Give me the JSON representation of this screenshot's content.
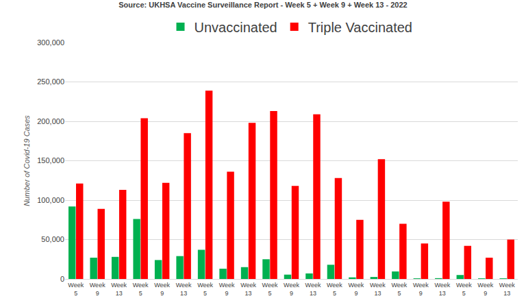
{
  "chart_data": {
    "type": "bar",
    "title": "Source: UKHSA Vaccine Surveillance Report - Week 5 + Week 9 + Week 13 - 2022",
    "y_label": "Number of Covid-19 Cases",
    "categories": [
      "Week 5",
      "Week 9",
      "Week 13",
      "Week 5",
      "Week 9",
      "Week 13",
      "Week 5",
      "Week 9",
      "Week 13",
      "Week 5",
      "Week 9",
      "Week 13",
      "Week 5",
      "Week 9",
      "Week 13",
      "Week 5",
      "Week 9",
      "Week 13",
      "Week 5",
      "Week 9",
      "Week 13"
    ],
    "series": [
      {
        "name": "Unvaccinated",
        "color": "#00b050",
        "values": [
          92000,
          27000,
          28000,
          76000,
          24000,
          29000,
          37000,
          13000,
          15000,
          25000,
          5500,
          7000,
          18000,
          2000,
          2500,
          9500,
          800,
          1000,
          5000,
          800,
          800
        ]
      },
      {
        "name": "Triple Vaccinated",
        "color": "#ff0000",
        "values": [
          121000,
          89000,
          113000,
          204000,
          122000,
          185000,
          239000,
          136000,
          198000,
          213000,
          118000,
          209000,
          128000,
          75000,
          152000,
          70000,
          45000,
          98000,
          42000,
          27000,
          50000
        ]
      }
    ],
    "ylim": [
      0,
      300000
    ],
    "yticks": [
      0,
      {
        "value": 50000,
        "label": "50,000"
      },
      {
        "value": 100000,
        "label": "100,000"
      },
      {
        "value": 150000,
        "label": "150,000"
      },
      {
        "value": 200000,
        "label": "200,000"
      },
      {
        "value": 250000,
        "label": "250,000"
      },
      {
        "value": 300000,
        "label": "300,000"
      }
    ],
    "grid": true,
    "legend": "top"
  }
}
